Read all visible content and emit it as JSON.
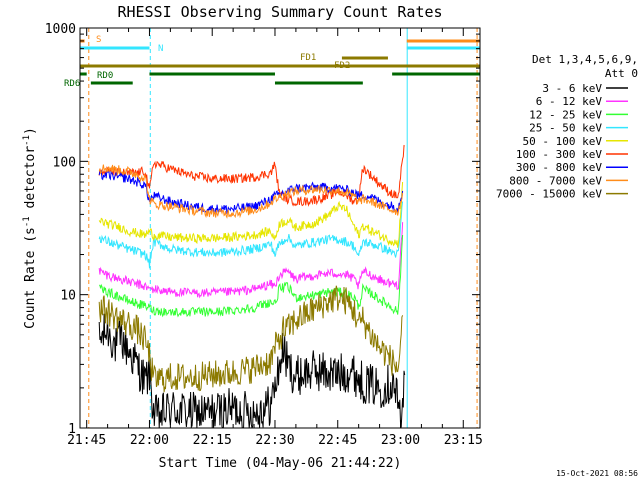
{
  "colors": {
    "background": "#ffffff",
    "axes": "#000000",
    "text": "#000000",
    "cyan": "#33e6ff",
    "orange": "#ff8c1a",
    "olive": "#8c7a00",
    "darkgreen": "#006600"
  },
  "chart_data": {
    "type": "line",
    "title": "RHESSI Observing Summary Count Rates",
    "xlabel": "Start Time (04-May-06 21:44:22)",
    "ylabel_main": "Count Rate (s",
    "ylabel_sup1": "-1",
    "ylabel_mid": " detector",
    "ylabel_sup2": "-1",
    "ylabel_end": ")",
    "xlim_minutes_after_2145": [
      -1.6,
      94
    ],
    "ylim": [
      1,
      1000
    ],
    "y_scale": "log",
    "x_ticks": [
      {
        "label": "21:45",
        "m": 0
      },
      {
        "label": "22:00",
        "m": 15
      },
      {
        "label": "22:15",
        "m": 30
      },
      {
        "label": "22:30",
        "m": 45
      },
      {
        "label": "22:45",
        "m": 60
      },
      {
        "label": "23:00",
        "m": 75
      },
      {
        "label": "23:15",
        "m": 90
      }
    ],
    "y_ticks": [
      {
        "label": "1",
        "v": 1
      },
      {
        "label": "10",
        "v": 10
      },
      {
        "label": "100",
        "v": 100
      },
      {
        "label": "1000",
        "v": 1000
      }
    ],
    "legend_header": [
      "Det 1,3,4,5,6,9,",
      "Att 0"
    ],
    "series": [
      {
        "name": "3 - 6 keV",
        "color": "#000000",
        "x": [
          3,
          5,
          7,
          8,
          10,
          12,
          14,
          15,
          16,
          17,
          20,
          25,
          30,
          35,
          40,
          44,
          45.5,
          47,
          48,
          50,
          52,
          55,
          60,
          63,
          66,
          70,
          73,
          74,
          75,
          76
        ],
        "y": [
          4.5,
          5.5,
          4.0,
          4.8,
          3.8,
          3.0,
          2.2,
          2.6,
          1.3,
          1.2,
          1.4,
          1.3,
          1.3,
          1.4,
          1.3,
          1.5,
          2.4,
          4.0,
          3.0,
          2.4,
          2.6,
          2.7,
          2.5,
          2.7,
          2.2,
          2.0,
          2.2,
          1.8,
          1.2,
          2.5
        ]
      },
      {
        "name": "6 - 12 keV",
        "color": "#ff33ff",
        "x": [
          3,
          5,
          10,
          14,
          15,
          16,
          20,
          25,
          30,
          35,
          40,
          44,
          45,
          46,
          48,
          50,
          52,
          55,
          58,
          60,
          62,
          64,
          65,
          66,
          68,
          70,
          72,
          73.5,
          74.5,
          75.5
        ],
        "y": [
          15,
          14,
          12.5,
          11.5,
          11,
          11,
          10.5,
          10.3,
          10.3,
          10.5,
          11,
          12,
          11.5,
          14,
          15,
          13,
          13.5,
          14,
          14.5,
          14.5,
          14,
          13,
          11.5,
          15,
          14,
          13,
          12.3,
          12,
          11.8,
          35
        ]
      },
      {
        "name": "12 - 25 keV",
        "color": "#33ff33",
        "x": [
          3,
          5,
          10,
          14,
          15,
          16,
          20,
          25,
          30,
          35,
          40,
          44,
          45,
          46,
          48,
          50,
          52,
          55,
          58,
          60,
          62,
          64,
          65,
          66,
          68,
          70,
          72,
          73.5,
          74.5,
          75.5
        ],
        "y": [
          11,
          10.5,
          9,
          8.2,
          8,
          7.6,
          7.4,
          7.4,
          7.4,
          7.6,
          8,
          8.8,
          8.5,
          11,
          11.5,
          9.5,
          9.7,
          10,
          10.5,
          10.5,
          10.2,
          9.5,
          8,
          11,
          10.2,
          9.2,
          8.4,
          7.8,
          7.5,
          28
        ]
      },
      {
        "name": "25 - 50 keV",
        "color": "#33e6ff",
        "x": [
          3,
          5,
          10,
          14,
          15,
          16,
          20,
          25,
          30,
          35,
          40,
          44,
          45,
          46,
          48,
          50,
          52,
          55,
          58,
          60,
          62,
          64,
          65,
          66,
          68,
          70,
          72,
          73.5,
          74.5,
          75.5
        ],
        "y": [
          27,
          25,
          22,
          20,
          17,
          25,
          22,
          21,
          20.5,
          21,
          22,
          24,
          20,
          24,
          27,
          23,
          24,
          25,
          26,
          26,
          25,
          23,
          19,
          25,
          24,
          23,
          21.5,
          20.5,
          20,
          50
        ]
      },
      {
        "name": "50 - 100 keV",
        "color": "#e6e600",
        "x": [
          3,
          5,
          8,
          10,
          12,
          14,
          15,
          16,
          20,
          25,
          30,
          35,
          40,
          44,
          45,
          46,
          48,
          50,
          52,
          55,
          58,
          60,
          62,
          64,
          65,
          66,
          68,
          70,
          72,
          73.5,
          74.5,
          75.5
        ],
        "y": [
          36,
          34,
          32,
          30,
          29,
          28,
          30,
          28,
          27,
          26.5,
          26.5,
          27,
          28,
          30,
          26,
          34,
          36,
          32,
          33,
          35,
          40,
          46,
          44,
          32,
          28,
          33,
          30,
          28,
          26,
          25,
          24,
          70
        ]
      },
      {
        "name": "100 - 300 keV",
        "color": "#ff3300",
        "x": [
          3,
          5,
          10,
          13,
          14,
          15,
          16,
          20,
          25,
          30,
          35,
          40,
          44,
          45,
          46,
          48,
          50,
          52,
          55,
          58,
          60,
          62,
          64,
          65,
          66,
          68,
          70,
          72,
          73.5,
          74.5,
          75.5,
          76
        ],
        "y": [
          82,
          84,
          81,
          83,
          85,
          60,
          98,
          88,
          78,
          74,
          74,
          76,
          82,
          95,
          58,
          52,
          50,
          50,
          52,
          55,
          60,
          56,
          50,
          52,
          90,
          78,
          68,
          60,
          56,
          55,
          105,
          130
        ]
      },
      {
        "name": "300 - 800 keV",
        "color": "#0000ff",
        "x": [
          3,
          5,
          10,
          14,
          15,
          16,
          20,
          25,
          30,
          35,
          40,
          43,
          45,
          46,
          48,
          50,
          55,
          60,
          62,
          64,
          65,
          66,
          68,
          70,
          72,
          73.5,
          74.5,
          75.5
        ],
        "y": [
          78,
          79,
          74,
          66,
          50,
          55,
          50,
          46,
          44,
          44,
          46,
          50,
          55,
          56,
          60,
          63,
          64,
          63,
          61,
          58,
          55,
          56,
          54,
          50,
          47,
          46,
          45,
          60
        ]
      },
      {
        "name": "800 - 7000 keV",
        "color": "#ff8c1a",
        "x": [
          3,
          5,
          10,
          14,
          15,
          16,
          20,
          25,
          30,
          35,
          40,
          43,
          45,
          46,
          48,
          50,
          55,
          60,
          62,
          64,
          65,
          66,
          68,
          70,
          72,
          73.5,
          74.5,
          75.5
        ],
        "y": [
          88,
          89,
          84,
          75,
          52,
          48,
          46,
          43,
          41,
          41,
          43,
          47,
          52,
          54,
          58,
          60,
          62,
          60,
          58,
          54,
          50,
          52,
          50,
          47,
          44,
          43,
          42,
          58
        ]
      },
      {
        "name": "7000 - 15000 keV",
        "color": "#8c7a00",
        "x": [
          3,
          5,
          8,
          10,
          12,
          14,
          15,
          16,
          20,
          25,
          30,
          35,
          40,
          44,
          45,
          46,
          47,
          48,
          50,
          52,
          55,
          58,
          60,
          62,
          64,
          65,
          66,
          68,
          70,
          72,
          73.5,
          74.5,
          75.5
        ],
        "y": [
          8,
          7.5,
          6.5,
          6,
          5.5,
          4.5,
          3.5,
          2.3,
          2.4,
          2.4,
          2.5,
          2.6,
          2.8,
          3.2,
          4,
          4.5,
          5.5,
          5.5,
          6.5,
          7,
          8,
          9,
          9.5,
          9,
          7.5,
          6,
          6.5,
          5,
          4,
          3.5,
          3,
          2.8,
          7
        ]
      }
    ],
    "flag_lines": [
      {
        "label": "S",
        "label_color": "#ff8c1a",
        "color": "#ff8c1a",
        "y_row": 0,
        "segments": [
          [
            -1.6,
            -0.5
          ],
          [
            76.5,
            94
          ]
        ]
      },
      {
        "label": "N",
        "label_color": "#33e6ff",
        "color": "#33e6ff",
        "y_row": 1,
        "segments": [
          [
            -1.6,
            15
          ],
          [
            76.5,
            94
          ]
        ]
      },
      {
        "label": "FD1",
        "label_color": "#8c7a00",
        "color": "#8c7a00",
        "y_row": 2,
        "segments": [
          [
            61,
            72
          ]
        ]
      },
      {
        "label": "FD2",
        "label_color": "#8c7a00",
        "color": "#8c7a00",
        "y_row": 3,
        "segments": [
          [
            -1.6,
            94
          ]
        ]
      },
      {
        "label": "RD0",
        "label_color": "#006600",
        "color": "#006600",
        "y_row": 4,
        "segments": [
          [
            -1.6,
            0
          ],
          [
            15,
            45
          ],
          [
            73,
            94
          ]
        ]
      },
      {
        "label": "RD6",
        "label_color": "#006600",
        "color": "#006600",
        "y_row": 5,
        "segments": [
          [
            1,
            11
          ],
          [
            45,
            66
          ]
        ]
      }
    ],
    "vertical_markers": [
      {
        "m": -1.6,
        "color": "#33e6ff",
        "style": "solid"
      },
      {
        "m": 0.5,
        "color": "#ff8c1a",
        "style": "dashed"
      },
      {
        "m": 15.2,
        "color": "#33e6ff",
        "style": "dashed"
      },
      {
        "m": 76.6,
        "color": "#33e6ff",
        "style": "solid"
      },
      {
        "m": 93.3,
        "color": "#ff8c1a",
        "style": "dashed"
      }
    ]
  },
  "footer_date": "15-Oct-2021 08:56"
}
